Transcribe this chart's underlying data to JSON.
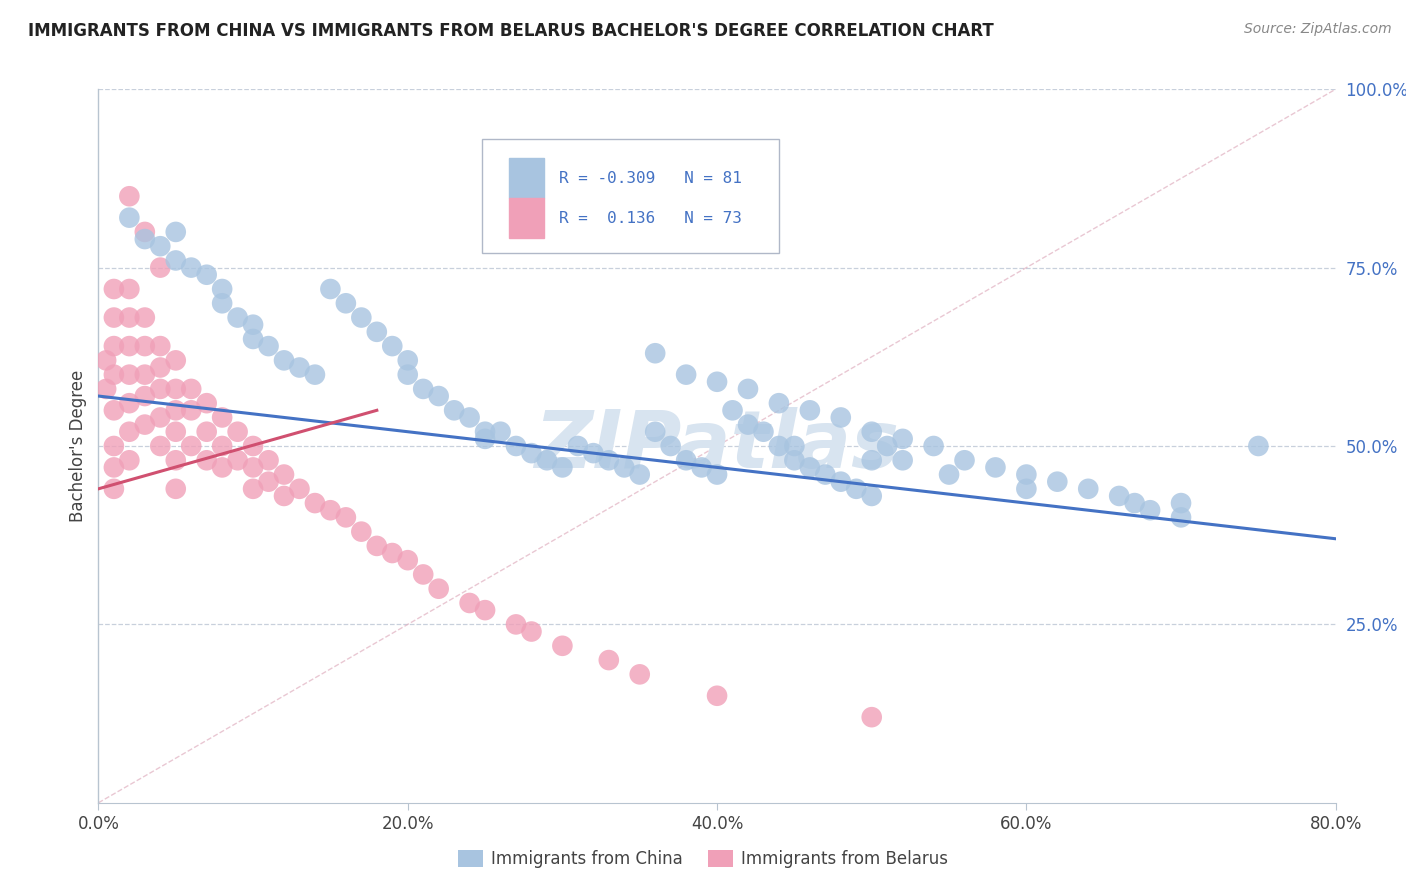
{
  "title": "IMMIGRANTS FROM CHINA VS IMMIGRANTS FROM BELARUS BACHELOR'S DEGREE CORRELATION CHART",
  "source_text": "Source: ZipAtlas.com",
  "ylabel": "Bachelor's Degree",
  "x_tick_labels": [
    "0.0%",
    "",
    "",
    "",
    "",
    "20.0%",
    "",
    "",
    "",
    "",
    "40.0%",
    "",
    "",
    "",
    "",
    "60.0%",
    "",
    "",
    "",
    "",
    "80.0%"
  ],
  "x_tick_vals": [
    0,
    4,
    8,
    12,
    16,
    20,
    24,
    28,
    32,
    36,
    40,
    44,
    48,
    52,
    56,
    60,
    64,
    68,
    72,
    76,
    80
  ],
  "x_major_ticks": [
    0,
    20,
    40,
    60,
    80
  ],
  "x_major_labels": [
    "0.0%",
    "20.0%",
    "40.0%",
    "60.0%",
    "80.0%"
  ],
  "y_tick_vals_right": [
    25,
    50,
    75,
    100
  ],
  "y_tick_labels_right": [
    "25.0%",
    "50.0%",
    "75.0%",
    "100.0%"
  ],
  "xlim": [
    0,
    80
  ],
  "ylim": [
    0,
    100
  ],
  "china_color": "#a8c4e0",
  "belarus_color": "#f0a0b8",
  "china_line_color": "#4472c4",
  "belarus_line_color": "#d05070",
  "watermark_color": "#d8e4f0",
  "background_color": "#ffffff",
  "grid_color": "#c8d0dc",
  "china_scatter_x": [
    2,
    3,
    4,
    5,
    5,
    6,
    7,
    8,
    8,
    9,
    10,
    10,
    11,
    12,
    13,
    14,
    15,
    16,
    17,
    18,
    19,
    20,
    20,
    21,
    22,
    23,
    24,
    25,
    25,
    26,
    27,
    28,
    29,
    30,
    31,
    32,
    33,
    34,
    35,
    36,
    37,
    38,
    39,
    40,
    41,
    42,
    43,
    44,
    45,
    46,
    47,
    48,
    49,
    50,
    51,
    52,
    38,
    40,
    42,
    44,
    46,
    48,
    50,
    52,
    54,
    56,
    58,
    60,
    62,
    64,
    66,
    67,
    68,
    70,
    36,
    45,
    50,
    55,
    60,
    70,
    75
  ],
  "china_scatter_y": [
    82,
    79,
    78,
    80,
    76,
    75,
    74,
    72,
    70,
    68,
    67,
    65,
    64,
    62,
    61,
    60,
    72,
    70,
    68,
    66,
    64,
    62,
    60,
    58,
    57,
    55,
    54,
    52,
    51,
    52,
    50,
    49,
    48,
    47,
    50,
    49,
    48,
    47,
    46,
    52,
    50,
    48,
    47,
    46,
    55,
    53,
    52,
    50,
    48,
    47,
    46,
    45,
    44,
    43,
    50,
    48,
    60,
    59,
    58,
    56,
    55,
    54,
    52,
    51,
    50,
    48,
    47,
    46,
    45,
    44,
    43,
    42,
    41,
    40,
    63,
    50,
    48,
    46,
    44,
    42,
    50
  ],
  "belarus_scatter_x": [
    0.5,
    0.5,
    1,
    1,
    1,
    1,
    1,
    1,
    1,
    1,
    2,
    2,
    2,
    2,
    2,
    2,
    2,
    3,
    3,
    3,
    3,
    3,
    4,
    4,
    4,
    4,
    4,
    5,
    5,
    5,
    5,
    5,
    5,
    6,
    6,
    6,
    7,
    7,
    7,
    8,
    8,
    8,
    9,
    9,
    10,
    10,
    10,
    11,
    11,
    12,
    12,
    13,
    14,
    15,
    16,
    17,
    18,
    19,
    20,
    21,
    22,
    24,
    25,
    27,
    28,
    30,
    33,
    35,
    40,
    50,
    2,
    3,
    4
  ],
  "belarus_scatter_y": [
    62,
    58,
    72,
    68,
    64,
    60,
    55,
    50,
    47,
    44,
    72,
    68,
    64,
    60,
    56,
    52,
    48,
    68,
    64,
    60,
    57,
    53,
    64,
    61,
    58,
    54,
    50,
    62,
    58,
    55,
    52,
    48,
    44,
    58,
    55,
    50,
    56,
    52,
    48,
    54,
    50,
    47,
    52,
    48,
    50,
    47,
    44,
    48,
    45,
    46,
    43,
    44,
    42,
    41,
    40,
    38,
    36,
    35,
    34,
    32,
    30,
    28,
    27,
    25,
    24,
    22,
    20,
    18,
    15,
    12,
    85,
    80,
    75
  ],
  "china_line_x": [
    0,
    80
  ],
  "china_line_y": [
    57,
    37
  ],
  "belarus_line_x": [
    0,
    18
  ],
  "belarus_line_y": [
    44,
    55
  ],
  "ref_line_x": [
    0,
    80
  ],
  "ref_line_y": [
    0,
    100
  ]
}
